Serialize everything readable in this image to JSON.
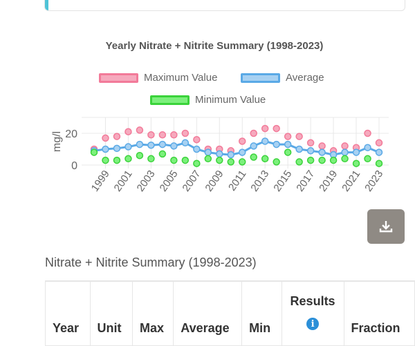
{
  "table": {
    "title": "Nitrate + Nitrite Summary (1998-2023)",
    "columns": [
      "Year",
      "Unit",
      "Max",
      "Average",
      "Min",
      "Results",
      "Fraction"
    ]
  },
  "download_icon": "download-icon",
  "info_icon": "info-icon",
  "chart_data": {
    "type": "line",
    "title": "Yearly Nitrate + Nitrite Summary (1998-2023)",
    "ylabel": "mg/l",
    "xlabel": "",
    "ylim": [
      0,
      30
    ],
    "yticks": [
      0,
      20
    ],
    "x": [
      1998,
      1999,
      2000,
      2001,
      2002,
      2003,
      2004,
      2005,
      2006,
      2007,
      2008,
      2009,
      2010,
      2011,
      2012,
      2013,
      2014,
      2015,
      2016,
      2017,
      2018,
      2019,
      2020,
      2021,
      2022,
      2023
    ],
    "xtick_labels": [
      "1999",
      "2001",
      "2003",
      "2005",
      "2007",
      "2009",
      "2011",
      "2013",
      "2015",
      "2017",
      "2019",
      "2021",
      "2023"
    ],
    "grid": true,
    "legend": "top",
    "series": [
      {
        "name": "Maximum Value",
        "color": "#f27a99",
        "fill": "#f6a9bd",
        "line": false,
        "values": [
          10,
          17,
          18,
          21,
          22,
          19,
          19,
          19,
          20,
          16,
          10,
          10,
          9,
          15,
          20,
          23,
          23,
          18,
          18,
          14,
          12,
          9,
          12,
          11,
          20,
          14
        ]
      },
      {
        "name": "Average",
        "color": "#5aa9e6",
        "fill": "#a7d1f2",
        "line": true,
        "values": [
          9,
          10,
          10.5,
          11.5,
          13,
          12.5,
          13,
          12,
          14,
          10,
          8,
          7,
          6.5,
          8,
          12,
          15,
          13,
          13,
          10,
          9,
          8,
          6.5,
          8,
          8,
          11,
          8
        ]
      },
      {
        "name": "Minimum Value",
        "color": "#3ad33a",
        "fill": "#7cf07c",
        "line": false,
        "values": [
          8,
          3,
          3,
          4,
          6,
          4,
          7,
          3,
          3,
          1,
          4,
          3,
          2,
          2,
          5,
          4,
          2,
          8,
          2,
          3,
          3,
          3,
          4,
          1,
          4,
          1
        ]
      }
    ]
  }
}
